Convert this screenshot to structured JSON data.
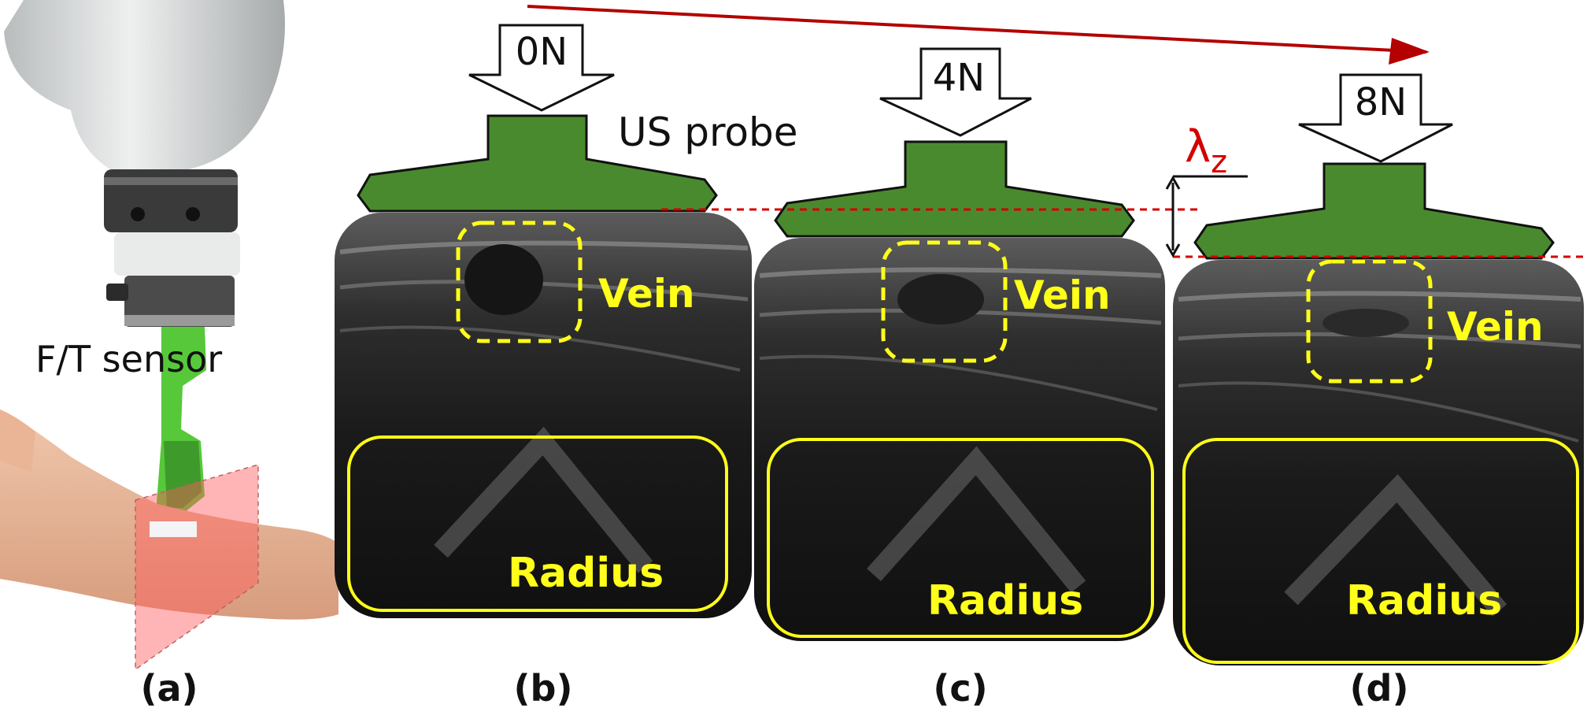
{
  "panels": [
    {
      "label": "(a)",
      "sensor_label": "F/T sensor"
    },
    {
      "label": "(b)",
      "force": "0N",
      "probe_label": "US probe",
      "vein_label": "Vein",
      "radius_label": "Radius"
    },
    {
      "label": "(c)",
      "force": "4N",
      "vein_label": "Vein",
      "radius_label": "Radius"
    },
    {
      "label": "(d)",
      "force": "8N",
      "vein_label": "Vein",
      "radius_label": "Radius"
    }
  ],
  "displacement_symbol": "λ",
  "displacement_subscript": "z",
  "colors": {
    "probe": "#4a8a2e",
    "annotation": "#ffff1a",
    "arrow": "#b30000",
    "guide_line": "#d40000"
  }
}
